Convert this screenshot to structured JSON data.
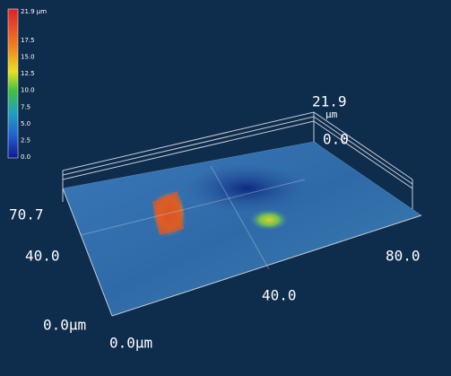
{
  "colorbar": {
    "top_label": "21.9 µm",
    "ticks": [
      "17.5",
      "15.0",
      "12.5",
      "10.0",
      "7.5",
      "5.0",
      "2.5",
      "0.0"
    ]
  },
  "axes": {
    "z_max": "21.9",
    "z_unit": "µm",
    "z_min": "0.0",
    "y_max": "70.7",
    "y_mid": "40.0",
    "x_max": "80.0",
    "x_mid": "40.0",
    "y_origin": "0.0µm",
    "x_origin": "0.0µm"
  }
}
